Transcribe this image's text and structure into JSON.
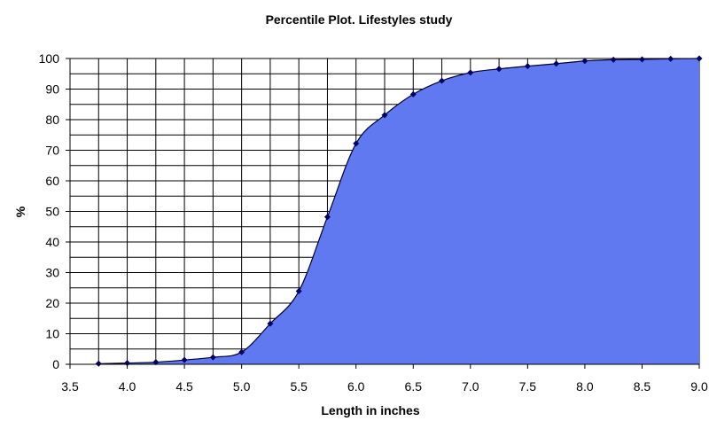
{
  "chart_data": {
    "type": "area",
    "title": "Percentile Plot. Lifestyles study",
    "xlabel": "Length in inches",
    "ylabel": "%",
    "xlim": [
      3.5,
      9.0
    ],
    "ylim": [
      0,
      100
    ],
    "xticks": [
      "3.5",
      "4.0",
      "4.5",
      "5.0",
      "5.5",
      "6.0",
      "6.5",
      "7.0",
      "7.5",
      "8.0",
      "8.5",
      "9.0"
    ],
    "yticks": [
      "0",
      "10",
      "20",
      "30",
      "40",
      "50",
      "60",
      "70",
      "80",
      "90",
      "100"
    ],
    "grid": true,
    "x_minor_step": 0.25,
    "y_minor_step": 5,
    "colors": {
      "fill": "#6079F0",
      "line": "#000033",
      "marker": "#000066",
      "grid": "#000000"
    },
    "series": [
      {
        "x": [
          3.75,
          4.0,
          4.25,
          4.5,
          4.75,
          5.0,
          5.25,
          5.5,
          5.75,
          6.0,
          6.25,
          6.5,
          6.75,
          7.0,
          7.25,
          7.5,
          7.75,
          8.0,
          8.25,
          8.5,
          8.75,
          9.0
        ],
        "values": [
          0.2,
          0.4,
          0.7,
          1.4,
          2.3,
          4.0,
          13.3,
          23.9,
          48.2,
          72.2,
          81.5,
          88.3,
          92.7,
          95.4,
          96.6,
          97.5,
          98.3,
          99.2,
          99.6,
          99.7,
          99.9,
          100
        ]
      }
    ]
  }
}
